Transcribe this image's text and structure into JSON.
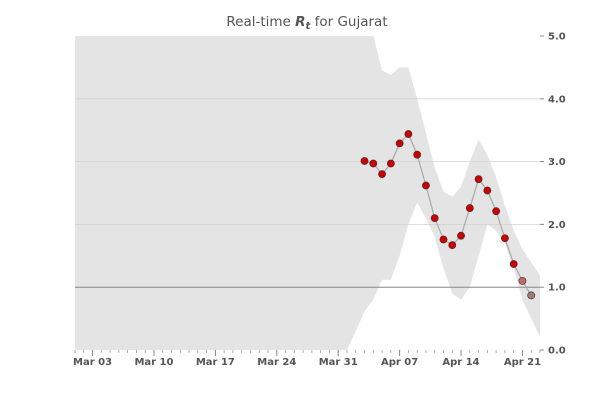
{
  "chart_data": {
    "type": "line",
    "title_prefix": "Real-time ",
    "title_symbol": "R",
    "title_subscript": "t",
    "title_suffix": " for Gujarat",
    "xlabel": "",
    "ylabel": "",
    "x_tick_labels": [
      "Mar 03",
      "Mar 10",
      "Mar 17",
      "Mar 24",
      "Mar 31",
      "Apr 07",
      "Apr 14",
      "Apr 21"
    ],
    "y_tick_labels": [
      "0.0",
      "1.0",
      "2.0",
      "3.0",
      "4.0",
      "5.0"
    ],
    "ylim": [
      0,
      5
    ],
    "reference_line": 1.0,
    "grid": true,
    "colors": {
      "band": "#e4e4e4",
      "line": "#a8a8a8",
      "point_high": "#cc0000",
      "point_low": "#444444",
      "reference": "#888888",
      "grid": "#d2d2d2"
    },
    "series": [
      {
        "x": [
          "2020-04-03",
          "2020-04-04",
          "2020-04-05",
          "2020-04-06",
          "2020-04-07",
          "2020-04-08",
          "2020-04-09",
          "2020-04-10",
          "2020-04-11",
          "2020-04-12",
          "2020-04-13",
          "2020-04-14",
          "2020-04-15",
          "2020-04-16",
          "2020-04-17",
          "2020-04-18",
          "2020-04-19",
          "2020-04-20",
          "2020-04-21",
          "2020-04-22"
        ],
        "values": [
          3.01,
          2.97,
          2.8,
          2.97,
          3.29,
          3.44,
          3.11,
          2.62,
          2.1,
          1.76,
          1.67,
          1.82,
          2.26,
          2.72,
          2.54,
          2.21,
          1.78,
          1.37,
          1.1,
          0.87
        ]
      }
    ],
    "band": {
      "x": [
        "2020-03-01",
        "2020-03-30",
        "2020-04-01",
        "2020-04-02",
        "2020-04-03",
        "2020-04-04",
        "2020-04-05",
        "2020-04-06",
        "2020-04-07",
        "2020-04-08",
        "2020-04-09",
        "2020-04-10",
        "2020-04-11",
        "2020-04-12",
        "2020-04-13",
        "2020-04-14",
        "2020-04-15",
        "2020-04-16",
        "2020-04-17",
        "2020-04-18",
        "2020-04-19",
        "2020-04-20",
        "2020-04-21",
        "2020-04-22",
        "2020-04-23"
      ],
      "upper": [
        5.0,
        5.0,
        5.0,
        5.0,
        5.0,
        5.0,
        4.45,
        4.38,
        4.5,
        4.5,
        4.0,
        3.45,
        2.9,
        2.52,
        2.44,
        2.6,
        3.0,
        3.35,
        3.1,
        2.75,
        2.3,
        1.9,
        1.6,
        1.4,
        1.18
      ],
      "lower": [
        0.0,
        0.0,
        0.0,
        0.3,
        0.62,
        0.8,
        1.12,
        1.12,
        1.5,
        2.0,
        2.35,
        2.1,
        1.8,
        1.3,
        0.9,
        0.8,
        1.0,
        1.5,
        2.0,
        1.9,
        1.7,
        1.3,
        0.8,
        0.5,
        0.2
      ]
    }
  }
}
